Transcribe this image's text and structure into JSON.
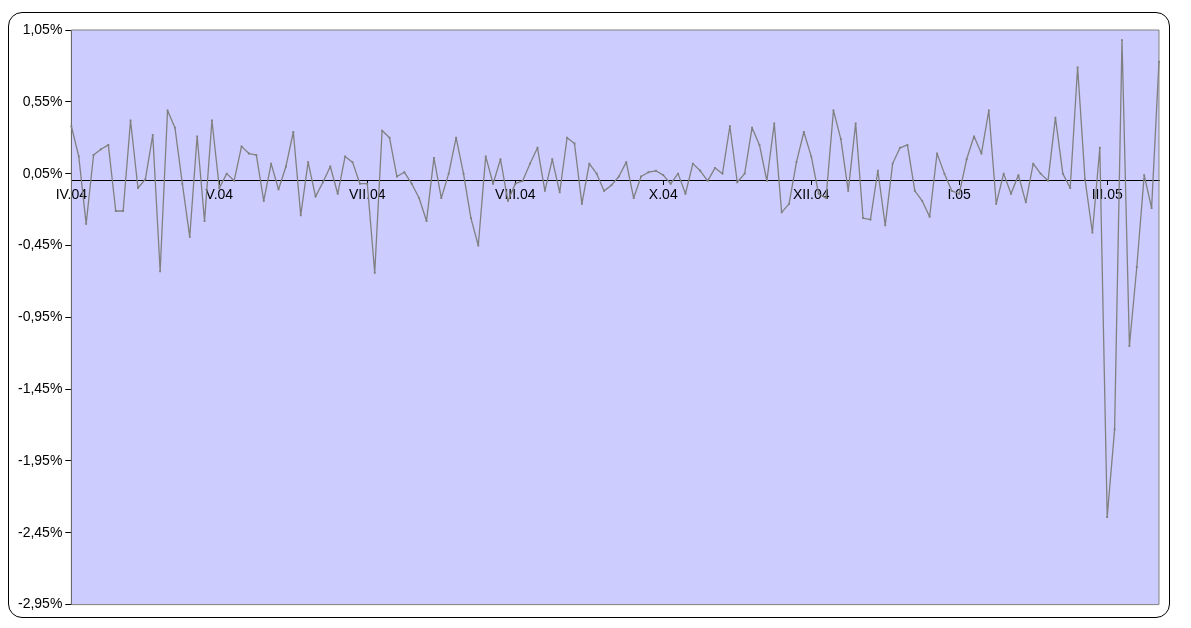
{
  "chart_data": {
    "type": "line",
    "categories": [
      "IV.04",
      null,
      null,
      null,
      null,
      null,
      null,
      null,
      null,
      null,
      null,
      null,
      null,
      null,
      null,
      null,
      null,
      null,
      null,
      null,
      "V.04",
      null,
      null,
      null,
      null,
      null,
      null,
      null,
      null,
      null,
      null,
      null,
      null,
      null,
      null,
      null,
      null,
      null,
      null,
      null,
      "VII.04",
      null,
      null,
      null,
      null,
      null,
      null,
      null,
      null,
      null,
      null,
      null,
      null,
      null,
      null,
      null,
      null,
      null,
      null,
      null,
      "VIII.04",
      null,
      null,
      null,
      null,
      null,
      null,
      null,
      null,
      null,
      null,
      null,
      null,
      null,
      null,
      null,
      null,
      null,
      null,
      null,
      "X.04",
      null,
      null,
      null,
      null,
      null,
      null,
      null,
      null,
      null,
      null,
      null,
      null,
      null,
      null,
      null,
      null,
      null,
      null,
      null,
      "XII.04",
      null,
      null,
      null,
      null,
      null,
      null,
      null,
      null,
      null,
      null,
      null,
      null,
      null,
      null,
      null,
      null,
      null,
      null,
      null,
      "I.05",
      null,
      null,
      null,
      null,
      null,
      null,
      null,
      null,
      null,
      null,
      null,
      null,
      null,
      null,
      null,
      null,
      null,
      null,
      null,
      "III.05",
      null,
      null,
      null,
      null,
      null,
      null,
      null
    ],
    "values": [
      0.38,
      0.17,
      -0.3,
      0.18,
      0.22,
      0.25,
      -0.21,
      -0.21,
      0.42,
      -0.05,
      0.01,
      0.32,
      -0.63,
      0.49,
      0.37,
      -0.02,
      -0.39,
      0.31,
      -0.28,
      0.42,
      -0.05,
      0.05,
      0.0,
      0.24,
      0.19,
      0.18,
      -0.14,
      0.12,
      -0.06,
      0.1,
      0.34,
      -0.24,
      0.13,
      -0.11,
      -0.01,
      0.1,
      -0.09,
      0.17,
      0.13,
      -0.02,
      -0.02,
      -0.64,
      0.35,
      0.3,
      0.03,
      0.06,
      -0.02,
      -0.12,
      -0.28,
      0.16,
      -0.12,
      0.05,
      0.3,
      0.05,
      -0.26,
      -0.45,
      0.17,
      -0.02,
      0.15,
      -0.14,
      -0.02,
      0.0,
      0.12,
      0.23,
      -0.07,
      0.15,
      -0.08,
      0.3,
      0.26,
      -0.16,
      0.12,
      0.05,
      -0.07,
      -0.03,
      0.03,
      0.13,
      -0.12,
      0.03,
      0.06,
      0.07,
      0.04,
      -0.02,
      0.05,
      -0.09,
      0.12,
      0.07,
      0.0,
      0.09,
      0.05,
      0.38,
      -0.01,
      0.05,
      0.37,
      0.25,
      0.0,
      0.4,
      -0.22,
      -0.16,
      0.13,
      0.34,
      0.17,
      -0.09,
      -0.12,
      0.49,
      0.29,
      -0.07,
      0.4,
      -0.26,
      -0.27,
      0.07,
      -0.31,
      0.12,
      0.23,
      0.25,
      -0.07,
      -0.14,
      -0.25,
      0.19,
      0.05,
      -0.07,
      -0.09,
      0.15,
      0.31,
      0.19,
      0.49,
      -0.16,
      0.05,
      -0.09,
      0.04,
      -0.15,
      0.12,
      0.05,
      0.0,
      0.44,
      0.05,
      -0.05,
      0.79,
      0.01,
      -0.36,
      0.23,
      -2.34,
      -1.73,
      0.98,
      -1.15,
      -0.6,
      0.04,
      -0.19,
      0.83
    ],
    "color": "#808080",
    "ylim": [
      -2.95,
      1.05
    ],
    "yticks": [
      {
        "value": -2.95,
        "label": "-2,95%"
      },
      {
        "value": -2.45,
        "label": "-2,45%"
      },
      {
        "value": -1.95,
        "label": "-1,95%"
      },
      {
        "value": -1.45,
        "label": "-1,45%"
      },
      {
        "value": -0.95,
        "label": "-0,95%"
      },
      {
        "value": -0.45,
        "label": "-0,45%"
      },
      {
        "value": 0.05,
        "label": "0,05%"
      },
      {
        "value": 0.55,
        "label": "0,55%"
      },
      {
        "value": 1.05,
        "label": "1,05%"
      }
    ],
    "marker": "square"
  }
}
